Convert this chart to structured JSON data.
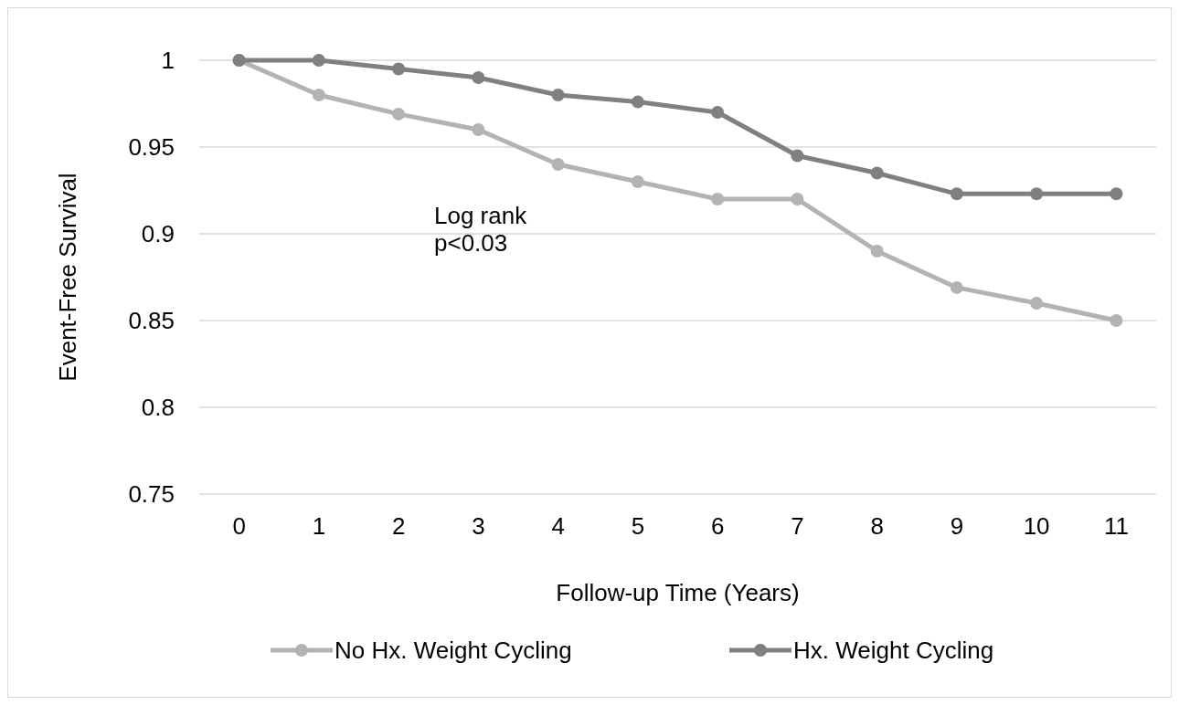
{
  "chart_data": {
    "type": "line",
    "xlabel": "Follow-up Time (Years)",
    "ylabel": "Event-Free Survival",
    "categories": [
      "0",
      "1",
      "2",
      "3",
      "4",
      "5",
      "6",
      "7",
      "8",
      "9",
      "10",
      "11"
    ],
    "series": [
      {
        "name": "No Hx. Weight Cycling",
        "color": "#b3b3b3",
        "values": [
          1,
          0.98,
          0.969,
          0.96,
          0.94,
          0.93,
          0.92,
          0.92,
          0.89,
          0.869,
          0.86,
          0.85
        ]
      },
      {
        "name": "Hx. Weight Cycling",
        "color": "#808080",
        "values": [
          1,
          1,
          0.995,
          0.99,
          0.98,
          0.976,
          0.97,
          0.945,
          0.935,
          0.923,
          0.923,
          0.923
        ]
      }
    ],
    "ylim": [
      0.75,
      1
    ],
    "yticks": [
      0.75,
      0.8,
      0.85,
      0.9,
      0.95,
      1
    ],
    "grid": "y",
    "legend": "bottom",
    "marker": "circle",
    "line_style": "solid",
    "annotations": [
      "Log rank\np<0.03"
    ]
  }
}
